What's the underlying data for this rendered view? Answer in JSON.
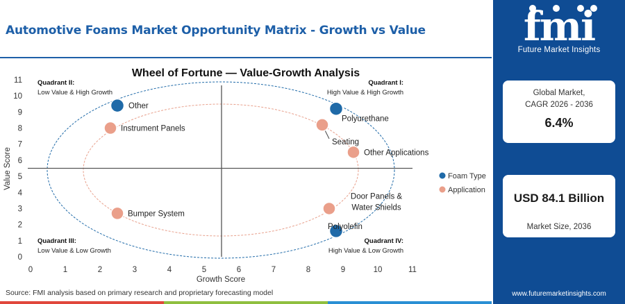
{
  "header": {
    "title": "Automotive Foams Market Opportunity Matrix - Growth vs Value"
  },
  "chart_data": {
    "type": "scatter",
    "title": "Wheel of Fortune — Value-Growth Analysis",
    "xlabel": "Growth Score",
    "ylabel": "Value Score",
    "xlim": [
      0,
      11
    ],
    "ylim": [
      0,
      11
    ],
    "xticks": [
      "0",
      "1",
      "2",
      "3",
      "4",
      "5",
      "6",
      "7",
      "8",
      "9",
      "10",
      "11"
    ],
    "yticks": [
      "0",
      "1",
      "2",
      "3",
      "4",
      "5",
      "6",
      "7",
      "8",
      "9",
      "10",
      "11"
    ],
    "divider_x": 5.5,
    "divider_y": 5.5,
    "quadrants": {
      "q1": {
        "name": "Quadrant I:",
        "desc": "High Value & High Growth"
      },
      "q2": {
        "name": "Quadrant II:",
        "desc": "Low Value & High Growth"
      },
      "q3": {
        "name": "Quadrant III:",
        "desc": "Low Value & Low Growth"
      },
      "q4": {
        "name": "Quadrant IV:",
        "desc": "High Value & Low Growth"
      }
    },
    "legend": {
      "placement": "right",
      "items": [
        {
          "label": "Foam Type",
          "color": "#1f6aa8"
        },
        {
          "label": "Application",
          "color": "#ea9f8a"
        }
      ]
    },
    "series": [
      {
        "name": "Foam Type",
        "color": "#1f6aa8",
        "points": [
          {
            "label": "Polyurethane",
            "x": 8.8,
            "y": 9.2
          },
          {
            "label": "Polyolefin",
            "x": 8.8,
            "y": 1.6
          },
          {
            "label": "Other",
            "x": 2.5,
            "y": 9.4
          }
        ]
      },
      {
        "name": "Application",
        "color": "#ea9f8a",
        "points": [
          {
            "label": "Seating",
            "x": 8.4,
            "y": 8.2
          },
          {
            "label": "Other Applications",
            "x": 9.3,
            "y": 6.5
          },
          {
            "label": "Door Panels & Water Shields",
            "x": 8.6,
            "y": 3.0
          },
          {
            "label": "Instrument Panels",
            "x": 2.3,
            "y": 8.0
          },
          {
            "label": "Bumper System",
            "x": 2.5,
            "y": 2.7
          }
        ]
      }
    ]
  },
  "side": {
    "logo_text": "fmi",
    "logo_sub": "Future Market Insights",
    "cagr_label_1": "Global Market,",
    "cagr_label_2": "CAGR 2026 - 2036",
    "cagr_value": "6.4%",
    "size_value": "USD 84.1 Billion",
    "size_label": "Market Size, 2036",
    "website": "www.futuremarketinsights.com"
  },
  "footer": {
    "source": "Source: FMI analysis based on primary research and proprietary forecasting model",
    "bar_colors": [
      "#e0473c",
      "#8fbf3f",
      "#2a8fd4"
    ]
  },
  "colors": {
    "brand_blue": "#0f4c94",
    "title_blue": "#1d5fa8"
  }
}
